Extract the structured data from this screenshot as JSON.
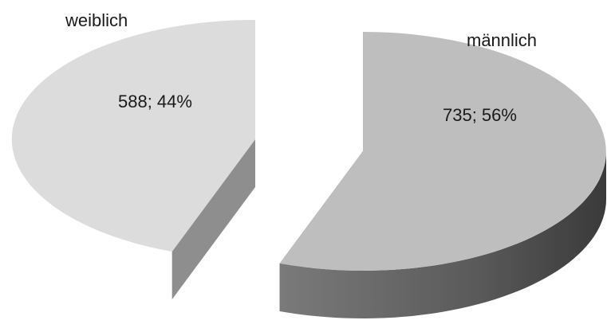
{
  "chart_data": {
    "type": "pie",
    "variant": "3d-exploded",
    "categories": [
      "weiblich",
      "männlich"
    ],
    "values": [
      588,
      735
    ],
    "percentages": [
      44,
      56
    ],
    "data_labels": [
      "588; 44%",
      "735; 56%"
    ],
    "legend": "none",
    "colors": {
      "weiblich_top": "#dcdcdc",
      "weiblich_side": "#a3a3a3",
      "maennlich_top": "#bebebe",
      "maennlich_side": "#5e5e5e"
    }
  }
}
